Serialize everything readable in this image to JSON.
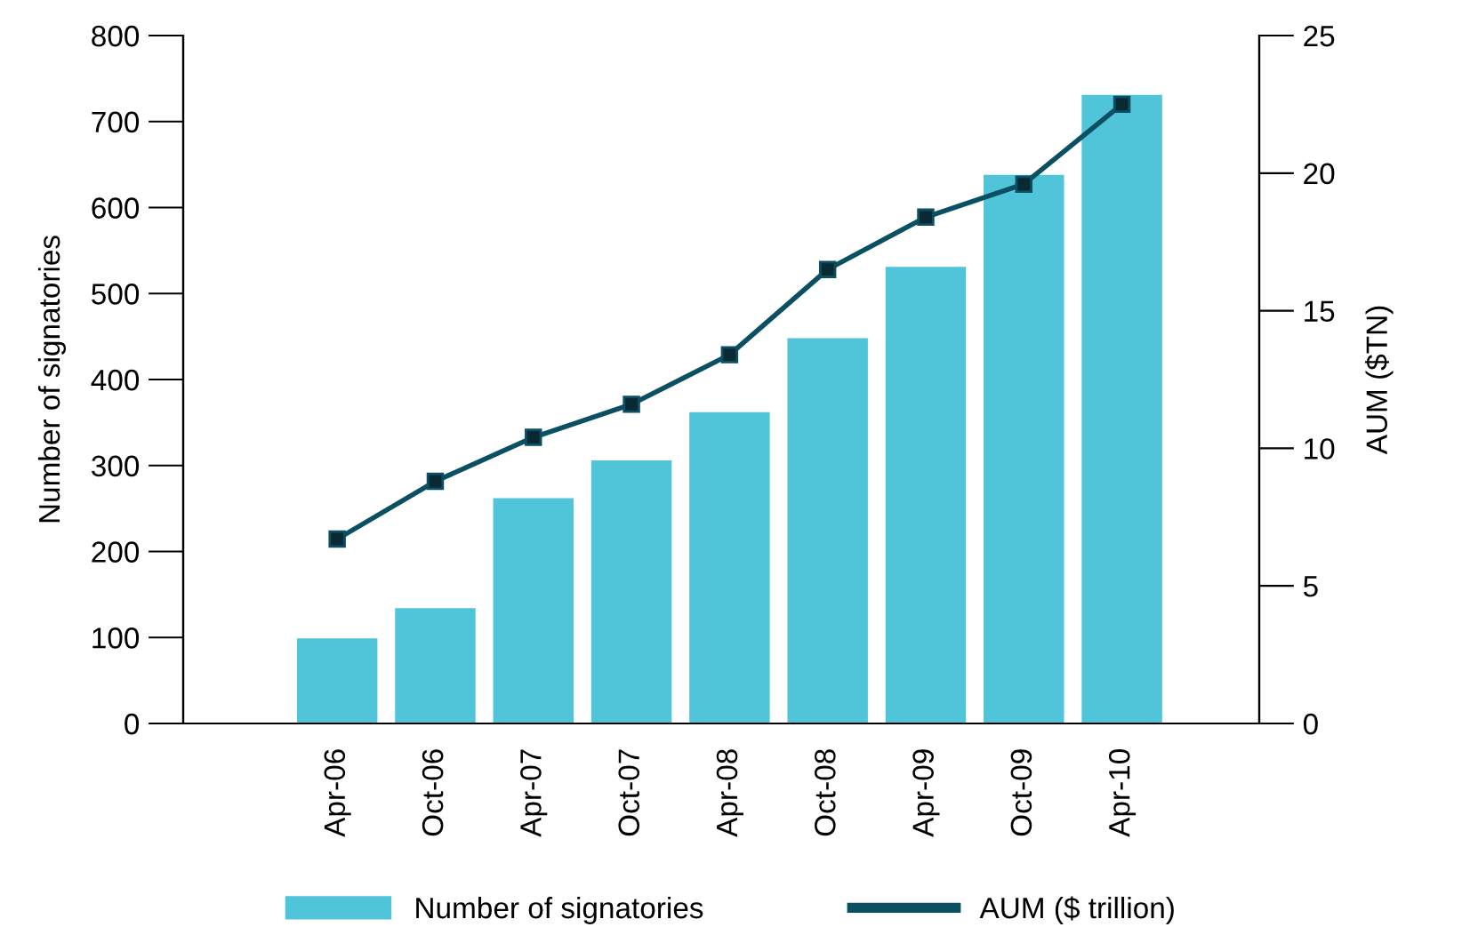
{
  "chart_data": {
    "type": "bar",
    "categories": [
      "Apr-06",
      "Oct-06",
      "Apr-07",
      "Oct-07",
      "Apr-08",
      "Oct-08",
      "Apr-09",
      "Oct-09",
      "Apr-10"
    ],
    "ylabel": "Number of signatories",
    "y2label": "AUM ($TN)",
    "ylim": [
      0,
      800
    ],
    "yticks": [
      0,
      100,
      200,
      300,
      400,
      500,
      600,
      700,
      800
    ],
    "y2lim": [
      0,
      25
    ],
    "y2ticks": [
      0,
      5,
      10,
      15,
      20,
      25
    ],
    "series": [
      {
        "name": "Number of signatories",
        "color": "#50c4d8",
        "values": [
          99,
          134,
          262,
          306,
          362,
          448,
          531,
          638,
          731
        ]
      },
      {
        "name": "AUM ($ trillion)",
        "type": "line",
        "axis": "y2",
        "color": "#0b4f63",
        "marker": "square",
        "values": [
          6.7,
          8.8,
          10.4,
          11.6,
          13.4,
          16.5,
          18.4,
          19.6,
          22.5
        ]
      }
    ],
    "legend": "bottom",
    "grid": false
  }
}
